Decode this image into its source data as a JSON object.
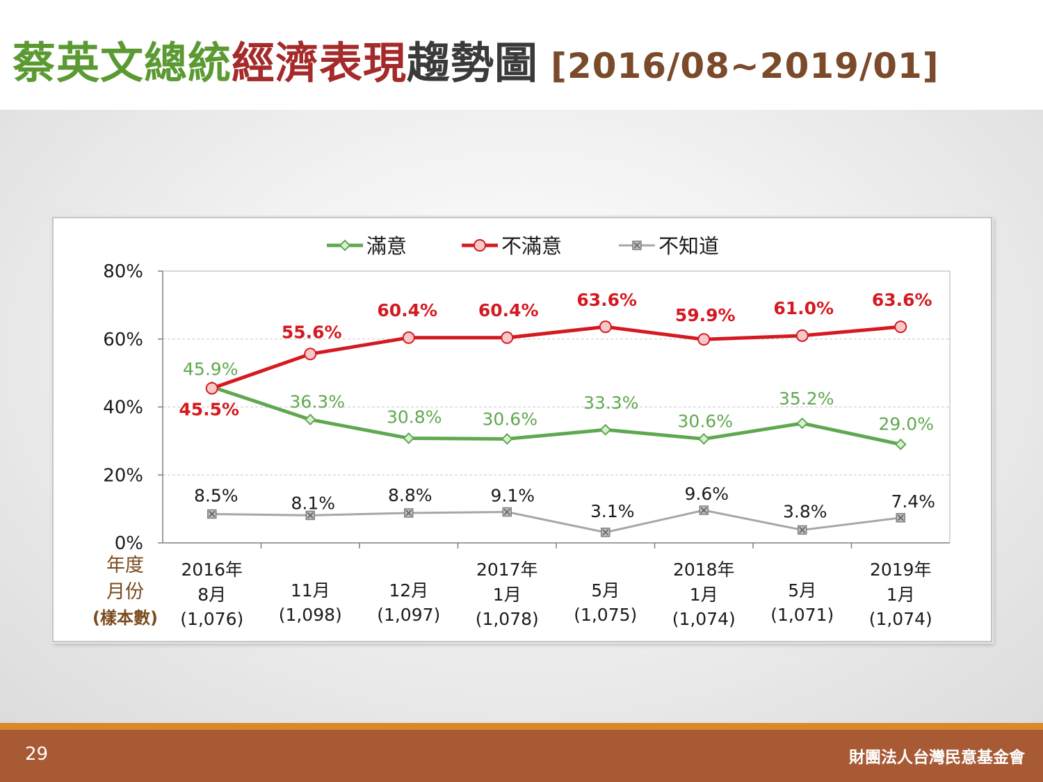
{
  "title": {
    "part1": "蔡英文總統",
    "part2": "經濟表現",
    "part3": "趨勢圖",
    "range": "[2016/08~2019/01]"
  },
  "colors": {
    "satisfied": "#5fa84f",
    "dissatisfied": "#d41920",
    "unknown": "#a6a6a6",
    "title_green": "#5b9a32",
    "title_red": "#a52a2a",
    "footer_bg": "#a85a35",
    "footer_line": "#d88a2a",
    "row_label": "#7a4a1e"
  },
  "chart_data": {
    "type": "line",
    "ylim": [
      0,
      80
    ],
    "yticks": [
      "0%",
      "20%",
      "40%",
      "60%",
      "80%"
    ],
    "ytick_values": [
      0,
      20,
      40,
      60,
      80
    ],
    "grid": "dashed horizontal",
    "legend_position": "top-center",
    "row_labels": [
      "年度",
      "月份",
      "(樣本數)"
    ],
    "categories": [
      {
        "year": "2016年",
        "month": "8月",
        "sample": "(1,076)"
      },
      {
        "year": "",
        "month": "11月",
        "sample": "(1,098)"
      },
      {
        "year": "",
        "month": "12月",
        "sample": "(1,097)"
      },
      {
        "year": "2017年",
        "month": "1月",
        "sample": "(1,078)"
      },
      {
        "year": "",
        "month": "5月",
        "sample": "(1,075)"
      },
      {
        "year": "2018年",
        "month": "1月",
        "sample": "(1,074)"
      },
      {
        "year": "",
        "month": "5月",
        "sample": "(1,071)"
      },
      {
        "year": "2019年",
        "month": "1月",
        "sample": "(1,074)"
      }
    ],
    "series": [
      {
        "name": "滿意",
        "color": "#5fa84f",
        "marker": "diamond",
        "values": [
          45.9,
          36.3,
          30.8,
          30.6,
          33.3,
          30.6,
          35.2,
          29.0
        ],
        "labels": [
          "45.9%",
          "36.3%",
          "30.8%",
          "30.6%",
          "33.3%",
          "30.6%",
          "35.2%",
          "29.0%"
        ]
      },
      {
        "name": "不滿意",
        "color": "#d41920",
        "marker": "circle",
        "values": [
          45.5,
          55.6,
          60.4,
          60.4,
          63.6,
          59.9,
          61.0,
          63.6
        ],
        "labels": [
          "45.5%",
          "55.6%",
          "60.4%",
          "60.4%",
          "63.6%",
          "59.9%",
          "61.0%",
          "63.6%"
        ]
      },
      {
        "name": "不知道",
        "color": "#a6a6a6",
        "marker": "x-square",
        "values": [
          8.5,
          8.1,
          8.8,
          9.1,
          3.1,
          9.6,
          3.8,
          7.4
        ],
        "labels": [
          "8.5%",
          "8.1%",
          "8.8%",
          "9.1%",
          "3.1%",
          "9.6%",
          "3.8%",
          "7.4%"
        ]
      }
    ]
  },
  "footer": {
    "page_number": "29",
    "organization": "財團法人台灣民意基金會"
  }
}
